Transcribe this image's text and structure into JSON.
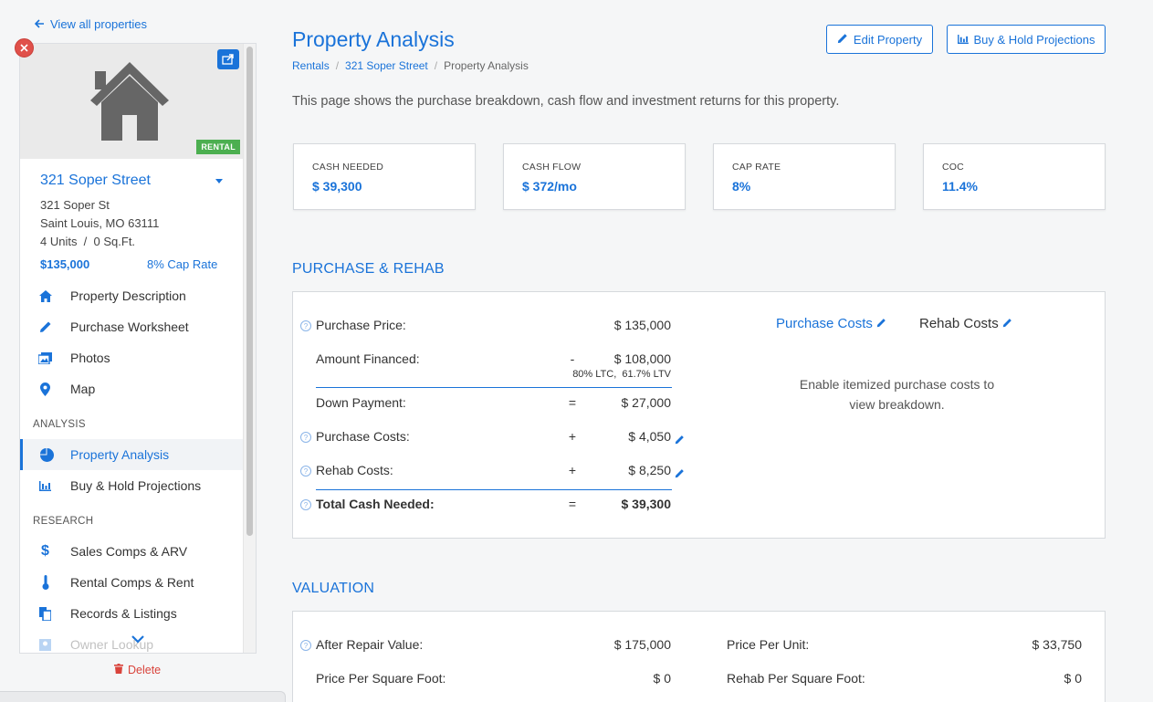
{
  "sidebar": {
    "back_link": "View all properties",
    "badge": "RENTAL",
    "property_name": "321 Soper Street",
    "address_line1": "321 Soper St",
    "address_line2": "Saint Louis, MO 63111",
    "units_sqft": "4 Units  /  0 Sq.Ft.",
    "price": "$135,000",
    "cap_rate": "8% Cap Rate",
    "nav": [
      {
        "label": "Property Description",
        "icon": "home-icon"
      },
      {
        "label": "Purchase Worksheet",
        "icon": "pencil-icon"
      },
      {
        "label": "Photos",
        "icon": "photos-icon"
      },
      {
        "label": "Map",
        "icon": "map-pin-icon"
      }
    ],
    "analysis_label": "ANALYSIS",
    "analysis_nav": [
      {
        "label": "Property Analysis",
        "icon": "pie-chart-icon",
        "active": true
      },
      {
        "label": "Buy & Hold Projections",
        "icon": "bar-chart-icon"
      }
    ],
    "research_label": "RESEARCH",
    "research_nav": [
      {
        "label": "Sales Comps & ARV",
        "icon": "dollar-icon"
      },
      {
        "label": "Rental Comps & Rent",
        "icon": "thermometer-icon"
      },
      {
        "label": "Records & Listings",
        "icon": "documents-icon"
      },
      {
        "label": "Owner Lookup",
        "icon": "user-icon"
      }
    ],
    "delete_label": "Delete"
  },
  "header": {
    "title": "Property Analysis",
    "breadcrumbs": [
      "Rentals",
      "321 Soper Street",
      "Property Analysis"
    ],
    "edit_button": "Edit Property",
    "projections_button": "Buy & Hold Projections",
    "intro": "This page shows the purchase breakdown, cash flow and investment returns for this property."
  },
  "kpis": [
    {
      "label": "CASH NEEDED",
      "value": "$ 39,300"
    },
    {
      "label": "CASH FLOW",
      "value": "$ 372/mo"
    },
    {
      "label": "CAP RATE",
      "value": "8%"
    },
    {
      "label": "COC",
      "value": "11.4%"
    }
  ],
  "purchase": {
    "heading": "PURCHASE & REHAB",
    "purchase_price_label": "Purchase Price:",
    "purchase_price": "$ 135,000",
    "financed_label": "Amount Financed:",
    "financed_op": "-",
    "financed": "$ 108,000",
    "financed_note": "80% LTC,  61.7% LTV",
    "down_label": "Down Payment:",
    "down_op": "=",
    "down": "$ 27,000",
    "pcosts_label": "Purchase Costs:",
    "pcosts_op": "+",
    "pcosts": "$ 4,050",
    "rcosts_label": "Rehab Costs:",
    "rcosts_op": "+",
    "rcosts": "$ 8,250",
    "total_label": "Total Cash Needed:",
    "total_op": "=",
    "total": "$ 39,300",
    "tab_purchase": "Purchase Costs",
    "tab_rehab": "Rehab Costs",
    "enable_msg": "Enable itemized purchase costs to view breakdown."
  },
  "valuation": {
    "heading": "VALUATION",
    "arv_label": "After Repair Value:",
    "arv": "$ 175,000",
    "ppsf_label": "Price Per Square Foot:",
    "ppsf": "$ 0",
    "ppu_label": "Price Per Unit:",
    "ppu": "$ 33,750",
    "rpsf_label": "Rehab Per Square Foot:",
    "rpsf": "$ 0"
  },
  "colors": {
    "accent": "#1a73d9",
    "badge": "#4caf50",
    "danger": "#d9433b"
  }
}
